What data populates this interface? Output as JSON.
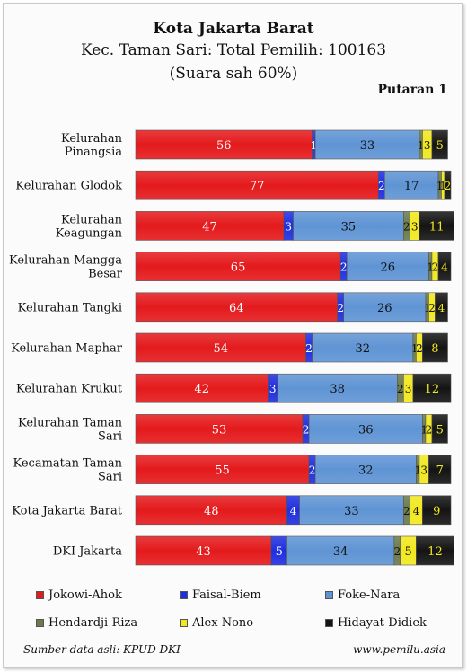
{
  "header": {
    "title": "Kota Jakarta Barat",
    "subtitle": "Kec. Taman Sari: Total Pemilih: 100163",
    "valid_votes": "(Suara sah 60%)",
    "round": "Putaran 1"
  },
  "chart_data": {
    "type": "bar",
    "orientation": "horizontal",
    "stacked": true,
    "percent": true,
    "categories": [
      "Kelurahan Pinangsia",
      "Kelurahan Glodok",
      "Kelurahan Keagungan",
      "Kelurahan Mangga Besar",
      "Kelurahan Tangki",
      "Kelurahan Maphar",
      "Kelurahan Krukut",
      "Kelurahan Taman Sari",
      "Kecamatan Taman Sari",
      "Kota Jakarta Barat",
      "DKI Jakarta"
    ],
    "series": [
      {
        "name": "Jokowi-Ahok",
        "color": "#e41a1c",
        "values": [
          56,
          77,
          47,
          65,
          64,
          54,
          42,
          53,
          55,
          48,
          43
        ]
      },
      {
        "name": "Faisal-Biem",
        "color": "#1f2ee0",
        "values": [
          1,
          2,
          3,
          2,
          2,
          2,
          3,
          2,
          2,
          4,
          5
        ]
      },
      {
        "name": "Foke-Nara",
        "color": "#5f94d4",
        "values": [
          33,
          17,
          35,
          26,
          26,
          32,
          38,
          36,
          32,
          33,
          34
        ]
      },
      {
        "name": "Hendardji-Riza",
        "color": "#6b7a4c",
        "values": [
          1,
          1,
          2,
          1,
          1,
          1,
          2,
          1,
          1,
          2,
          2
        ]
      },
      {
        "name": "Alex-Nono",
        "color": "#f2e81e",
        "values": [
          3,
          1,
          3,
          2,
          2,
          2,
          3,
          2,
          3,
          4,
          5
        ]
      },
      {
        "name": "Hidayat-Didiek",
        "color": "#141414",
        "values": [
          5,
          2,
          11,
          4,
          4,
          8,
          12,
          5,
          7,
          9,
          12
        ]
      }
    ],
    "xlim": [
      0,
      100
    ],
    "grid": false,
    "legend_position": "bottom"
  },
  "footer": {
    "source": "Sumber data asli: KPUD DKI",
    "site": "www.pemilu.asia"
  }
}
